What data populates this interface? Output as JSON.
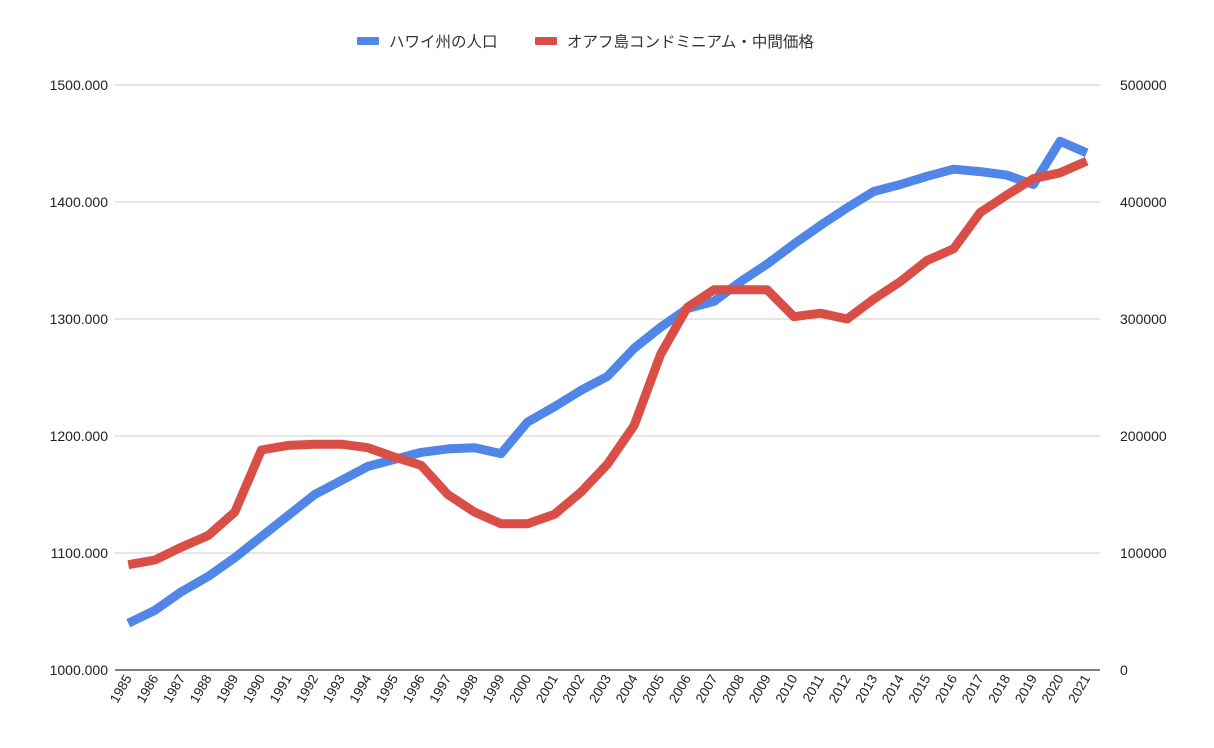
{
  "chart_data": {
    "type": "line",
    "title": "",
    "xlabel": "",
    "ylabel_left": "",
    "ylabel_right": "",
    "legend_position": "top-center",
    "grid": true,
    "x": [
      "1985",
      "1986",
      "1987",
      "1988",
      "1989",
      "1990",
      "1991",
      "1992",
      "1993",
      "1994",
      "1995",
      "1996",
      "1997",
      "1998",
      "1999",
      "2000",
      "2001",
      "2002",
      "2003",
      "2004",
      "2005",
      "2006",
      "2007",
      "2008",
      "2009",
      "2010",
      "2011",
      "2012",
      "2013",
      "2014",
      "2015",
      "2016",
      "2017",
      "2018",
      "2019",
      "2020",
      "2021"
    ],
    "left_axis": {
      "ylim": [
        1000,
        1500
      ],
      "ticks": [
        1000,
        1100,
        1200,
        1300,
        1400,
        1500
      ],
      "tick_labels": [
        "1000.000",
        "1100.000",
        "1200.000",
        "1300.000",
        "1400.000",
        "1500.000"
      ]
    },
    "right_axis": {
      "ylim": [
        0,
        500000
      ],
      "ticks": [
        0,
        100000,
        200000,
        300000,
        400000,
        500000
      ],
      "tick_labels": [
        "0",
        "100000",
        "200000",
        "300000",
        "400000",
        "500000"
      ]
    },
    "series": [
      {
        "name": "ハワイ州の人口",
        "axis": "left",
        "color": "#5086e8",
        "values": [
          1040,
          1051,
          1067,
          1080,
          1096,
          1114,
          1132,
          1150,
          1162,
          1174,
          1180,
          1186,
          1189,
          1190,
          1185,
          1212,
          1225,
          1239,
          1251,
          1275,
          1293,
          1309,
          1315,
          1332,
          1347,
          1364,
          1380,
          1395,
          1409,
          1415,
          1422,
          1428,
          1426,
          1423,
          1415,
          1452,
          1442
        ]
      },
      {
        "name": "オアフ島コンドミニアム・中間価格",
        "axis": "right",
        "color": "#d94f45",
        "values": [
          90000,
          94000,
          105000,
          115000,
          135000,
          188000,
          192000,
          193000,
          193000,
          190000,
          182000,
          175000,
          150000,
          135000,
          125000,
          125000,
          133000,
          152000,
          176000,
          209000,
          270000,
          310000,
          325000,
          325000,
          325000,
          302000,
          305000,
          300000,
          317000,
          332000,
          350000,
          360000,
          391000,
          406000,
          420000,
          425000,
          435000
        ]
      }
    ]
  }
}
